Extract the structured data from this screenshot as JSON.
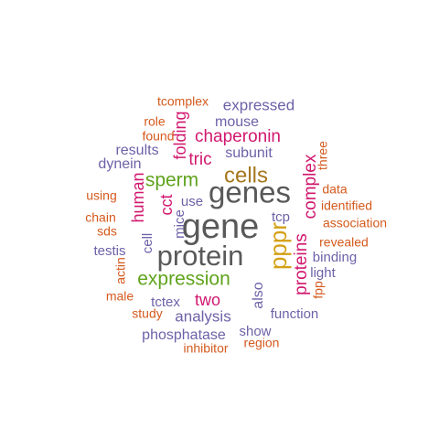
{
  "colors": {
    "gray": "#595959",
    "gold": "#d4a017",
    "brown": "#a6761d",
    "green": "#5fa31c",
    "magenta": "#d1186f",
    "purple": "#6c62a8",
    "orange": "#d45a1d"
  },
  "words": [
    {
      "text": "gene",
      "color": "gray"
    },
    {
      "text": "genes",
      "color": "gray"
    },
    {
      "text": "protein",
      "color": "gray"
    },
    {
      "text": "cells",
      "color": "brown"
    },
    {
      "text": "pppr",
      "color": "gold"
    },
    {
      "text": "expression",
      "color": "green"
    },
    {
      "text": "sperm",
      "color": "green"
    },
    {
      "text": "complex",
      "color": "magenta"
    },
    {
      "text": "proteins",
      "color": "magenta"
    },
    {
      "text": "chaperonin",
      "color": "magenta"
    },
    {
      "text": "tric",
      "color": "magenta"
    },
    {
      "text": "two",
      "color": "magenta"
    },
    {
      "text": "human",
      "color": "magenta"
    },
    {
      "text": "folding",
      "color": "magenta"
    },
    {
      "text": "cct",
      "color": "magenta"
    },
    {
      "text": "expressed",
      "color": "purple"
    },
    {
      "text": "mouse",
      "color": "purple"
    },
    {
      "text": "subunit",
      "color": "purple"
    },
    {
      "text": "results",
      "color": "purple"
    },
    {
      "text": "dynein",
      "color": "purple"
    },
    {
      "text": "use",
      "color": "purple"
    },
    {
      "text": "mice",
      "color": "purple"
    },
    {
      "text": "tcp",
      "color": "purple"
    },
    {
      "text": "cell",
      "color": "purple"
    },
    {
      "text": "testis",
      "color": "purple"
    },
    {
      "text": "binding",
      "color": "purple"
    },
    {
      "text": "light",
      "color": "purple"
    },
    {
      "text": "tctex",
      "color": "purple"
    },
    {
      "text": "analysis",
      "color": "purple"
    },
    {
      "text": "also",
      "color": "purple"
    },
    {
      "text": "function",
      "color": "purple"
    },
    {
      "text": "phosphatase",
      "color": "purple"
    },
    {
      "text": "show",
      "color": "purple"
    },
    {
      "text": "tcomplex",
      "color": "orange"
    },
    {
      "text": "role",
      "color": "orange"
    },
    {
      "text": "found",
      "color": "orange"
    },
    {
      "text": "three",
      "color": "orange"
    },
    {
      "text": "using",
      "color": "orange"
    },
    {
      "text": "data",
      "color": "orange"
    },
    {
      "text": "identified",
      "color": "orange"
    },
    {
      "text": "chain",
      "color": "orange"
    },
    {
      "text": "association",
      "color": "orange"
    },
    {
      "text": "sds",
      "color": "orange"
    },
    {
      "text": "revealed",
      "color": "orange"
    },
    {
      "text": "actin",
      "color": "orange"
    },
    {
      "text": "fpp",
      "color": "orange"
    },
    {
      "text": "male",
      "color": "orange"
    },
    {
      "text": "study",
      "color": "orange"
    },
    {
      "text": "inhibitor",
      "color": "orange"
    },
    {
      "text": "region",
      "color": "orange"
    }
  ]
}
